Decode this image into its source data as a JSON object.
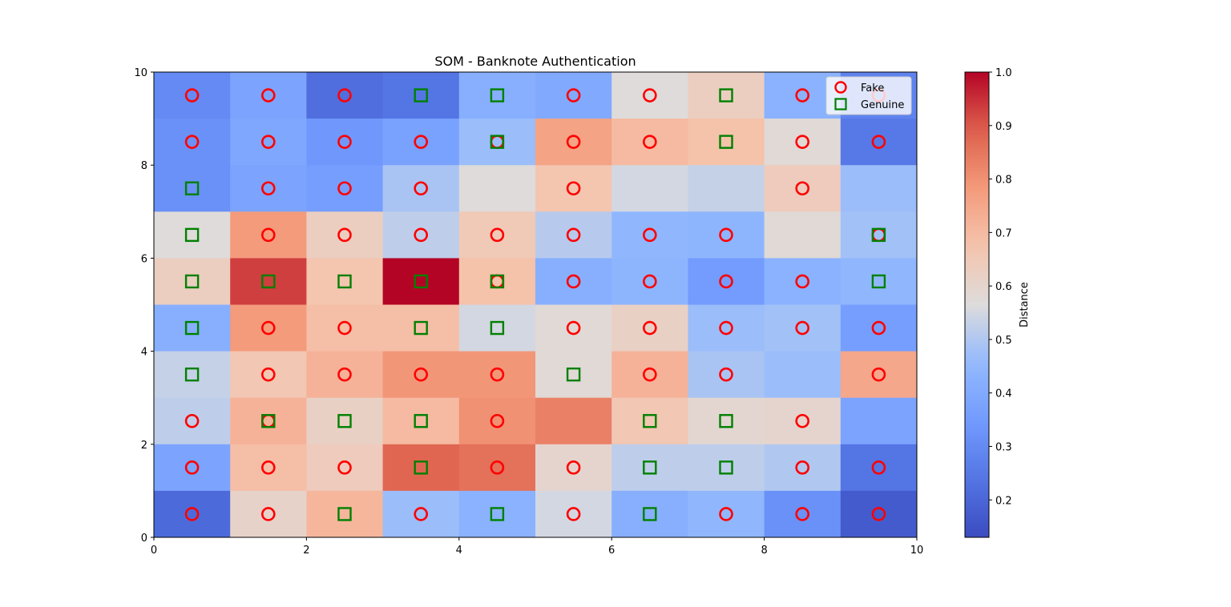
{
  "chart_data": {
    "type": "heatmap",
    "title": "SOM - Banknote Authentication",
    "xlabel": "",
    "ylabel": "",
    "xlim": [
      0,
      10
    ],
    "ylim": [
      0,
      10
    ],
    "x_ticks": [
      "0",
      "2",
      "4",
      "6",
      "8",
      "10"
    ],
    "y_ticks": [
      "0",
      "2",
      "4",
      "6",
      "8",
      "10"
    ],
    "colormap": "coolwarm",
    "colorbar": {
      "label": "Distance",
      "min": 0.13,
      "max": 1.0,
      "ticks": [
        "0.2",
        "0.3",
        "0.4",
        "0.5",
        "0.6",
        "0.7",
        "0.8",
        "0.9",
        "1.0"
      ]
    },
    "distance_matrix_rows_top_to_bottom": [
      [
        0.3,
        0.38,
        0.22,
        0.24,
        0.42,
        0.4,
        0.57,
        0.63,
        0.43,
        0.28
      ],
      [
        0.32,
        0.39,
        0.34,
        0.37,
        0.47,
        0.76,
        0.7,
        0.68,
        0.58,
        0.25
      ],
      [
        0.32,
        0.38,
        0.36,
        0.49,
        0.57,
        0.67,
        0.55,
        0.53,
        0.64,
        0.47
      ],
      [
        0.57,
        0.78,
        0.63,
        0.52,
        0.65,
        0.51,
        0.45,
        0.44,
        0.58,
        0.48
      ],
      [
        0.63,
        0.93,
        0.67,
        1.0,
        0.68,
        0.42,
        0.44,
        0.35,
        0.43,
        0.45
      ],
      [
        0.42,
        0.78,
        0.69,
        0.69,
        0.55,
        0.58,
        0.62,
        0.47,
        0.48,
        0.36
      ],
      [
        0.53,
        0.66,
        0.72,
        0.79,
        0.79,
        0.58,
        0.72,
        0.49,
        0.47,
        0.75
      ],
      [
        0.52,
        0.72,
        0.62,
        0.7,
        0.8,
        0.83,
        0.66,
        0.59,
        0.6,
        0.38
      ],
      [
        0.38,
        0.69,
        0.64,
        0.88,
        0.86,
        0.6,
        0.52,
        0.52,
        0.5,
        0.24
      ],
      [
        0.21,
        0.61,
        0.71,
        0.47,
        0.43,
        0.55,
        0.42,
        0.45,
        0.32,
        0.17
      ]
    ],
    "series": [
      {
        "name": "Fake",
        "marker": "circle",
        "color": "#ff0000",
        "points": [
          [
            0.5,
            9.5
          ],
          [
            1.5,
            9.5
          ],
          [
            2.5,
            9.5
          ],
          [
            5.5,
            9.5
          ],
          [
            6.5,
            9.5
          ],
          [
            8.5,
            9.5
          ],
          [
            0.5,
            8.5
          ],
          [
            1.5,
            8.5
          ],
          [
            2.5,
            8.5
          ],
          [
            3.5,
            8.5
          ],
          [
            4.5,
            8.5
          ],
          [
            5.5,
            8.5
          ],
          [
            6.5,
            8.5
          ],
          [
            8.5,
            8.5
          ],
          [
            9.5,
            8.5
          ],
          [
            1.5,
            7.5
          ],
          [
            2.5,
            7.5
          ],
          [
            3.5,
            7.5
          ],
          [
            5.5,
            7.5
          ],
          [
            8.5,
            7.5
          ],
          [
            1.5,
            6.5
          ],
          [
            2.5,
            6.5
          ],
          [
            3.5,
            6.5
          ],
          [
            4.5,
            6.5
          ],
          [
            5.5,
            6.5
          ],
          [
            6.5,
            6.5
          ],
          [
            7.5,
            6.5
          ],
          [
            9.5,
            6.5
          ],
          [
            4.5,
            5.5
          ],
          [
            5.5,
            5.5
          ],
          [
            6.5,
            5.5
          ],
          [
            7.5,
            5.5
          ],
          [
            8.5,
            5.5
          ],
          [
            1.5,
            4.5
          ],
          [
            2.5,
            4.5
          ],
          [
            5.5,
            4.5
          ],
          [
            6.5,
            4.5
          ],
          [
            7.5,
            4.5
          ],
          [
            8.5,
            4.5
          ],
          [
            9.5,
            4.5
          ],
          [
            1.5,
            3.5
          ],
          [
            2.5,
            3.5
          ],
          [
            3.5,
            3.5
          ],
          [
            4.5,
            3.5
          ],
          [
            6.5,
            3.5
          ],
          [
            7.5,
            3.5
          ],
          [
            9.5,
            3.5
          ],
          [
            0.5,
            2.5
          ],
          [
            1.5,
            2.5
          ],
          [
            4.5,
            2.5
          ],
          [
            8.5,
            2.5
          ],
          [
            0.5,
            1.5
          ],
          [
            1.5,
            1.5
          ],
          [
            2.5,
            1.5
          ],
          [
            4.5,
            1.5
          ],
          [
            5.5,
            1.5
          ],
          [
            8.5,
            1.5
          ],
          [
            9.5,
            1.5
          ],
          [
            0.5,
            0.5
          ],
          [
            1.5,
            0.5
          ],
          [
            3.5,
            0.5
          ],
          [
            5.5,
            0.5
          ],
          [
            7.5,
            0.5
          ],
          [
            8.5,
            0.5
          ],
          [
            9.5,
            0.5
          ],
          [
            9.5,
            9.5
          ]
        ]
      },
      {
        "name": "Genuine",
        "marker": "square",
        "color": "#008000",
        "points": [
          [
            3.5,
            9.5
          ],
          [
            4.5,
            9.5
          ],
          [
            7.5,
            9.5
          ],
          [
            4.5,
            8.5
          ],
          [
            7.5,
            8.5
          ],
          [
            0.5,
            7.5
          ],
          [
            0.5,
            6.5
          ],
          [
            9.5,
            6.5
          ],
          [
            0.5,
            5.5
          ],
          [
            1.5,
            5.5
          ],
          [
            2.5,
            5.5
          ],
          [
            3.5,
            5.5
          ],
          [
            4.5,
            5.5
          ],
          [
            9.5,
            5.5
          ],
          [
            0.5,
            4.5
          ],
          [
            3.5,
            4.5
          ],
          [
            4.5,
            4.5
          ],
          [
            0.5,
            3.5
          ],
          [
            5.5,
            3.5
          ],
          [
            1.5,
            2.5
          ],
          [
            2.5,
            2.5
          ],
          [
            3.5,
            2.5
          ],
          [
            6.5,
            2.5
          ],
          [
            7.5,
            2.5
          ],
          [
            3.5,
            1.5
          ],
          [
            6.5,
            1.5
          ],
          [
            7.5,
            1.5
          ],
          [
            2.5,
            0.5
          ],
          [
            4.5,
            0.5
          ],
          [
            6.5,
            0.5
          ]
        ]
      }
    ],
    "legend": {
      "position": "top-right",
      "entries": [
        "Fake",
        "Genuine"
      ]
    }
  }
}
